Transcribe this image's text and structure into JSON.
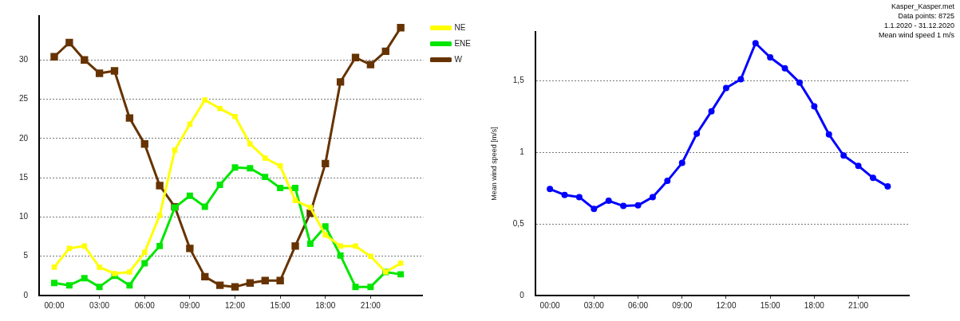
{
  "chart_data": [
    {
      "type": "line",
      "x": [
        0,
        1,
        2,
        3,
        4,
        5,
        6,
        7,
        8,
        9,
        10,
        11,
        12,
        13,
        14,
        15,
        16,
        17,
        18,
        19,
        20,
        21,
        22,
        23
      ],
      "series": [
        {
          "name": "NE",
          "color": "#ffff00",
          "values": [
            3.6,
            6.0,
            6.3,
            3.6,
            2.8,
            3.0,
            5.5,
            10.2,
            18.5,
            21.8,
            24.9,
            23.8,
            22.8,
            19.3,
            17.5,
            16.5,
            12.1,
            11.2,
            7.7,
            6.3,
            6.3,
            5.0,
            3.0,
            4.1
          ]
        },
        {
          "name": "ENE",
          "color": "#00e600",
          "values": [
            1.6,
            1.3,
            2.2,
            1.1,
            2.5,
            1.3,
            4.1,
            6.3,
            11.2,
            12.7,
            11.3,
            14.1,
            16.3,
            16.2,
            15.1,
            13.7,
            13.7,
            6.6,
            8.8,
            5.1,
            1.1,
            1.1,
            3.0,
            2.7
          ]
        },
        {
          "name": "W",
          "color": "#663300",
          "values": [
            30.4,
            32.2,
            30.0,
            28.3,
            28.6,
            22.6,
            19.3,
            14.0,
            11.3,
            6.0,
            2.4,
            1.3,
            1.1,
            1.6,
            1.9,
            1.9,
            6.3,
            10.5,
            16.8,
            27.2,
            30.3,
            29.4,
            31.1,
            34.1
          ]
        }
      ],
      "xlim": [
        -1,
        24.5
      ],
      "xticks": [
        {
          "value": 0,
          "label": "00:00"
        },
        {
          "value": 3,
          "label": "03:00"
        },
        {
          "value": 6,
          "label": "06:00"
        },
        {
          "value": 9,
          "label": "09:00"
        },
        {
          "value": 12,
          "label": "12:00"
        },
        {
          "value": 15,
          "label": "15:00"
        },
        {
          "value": 18,
          "label": "18:00"
        },
        {
          "value": 21,
          "label": "21:00"
        }
      ],
      "ylim": [
        0,
        35.6
      ],
      "yticks": [
        0,
        5,
        10,
        15,
        20,
        25,
        30
      ],
      "grid": "y",
      "legend": "top right",
      "marker": "square",
      "line_style": "solid"
    },
    {
      "type": "line",
      "x": [
        0,
        1,
        2,
        3,
        4,
        5,
        6,
        7,
        8,
        9,
        10,
        11,
        12,
        13,
        14,
        15,
        16,
        17,
        18,
        19,
        20,
        21,
        22,
        23
      ],
      "series": [
        {
          "color": "#0000ff",
          "values": [
            0.743,
            0.702,
            0.687,
            0.605,
            0.661,
            0.625,
            0.629,
            0.687,
            0.8,
            0.925,
            1.13,
            1.286,
            1.448,
            1.509,
            1.761,
            1.662,
            1.586,
            1.486,
            1.32,
            1.124,
            0.977,
            0.905,
            0.821,
            0.761
          ]
        }
      ],
      "ylabel": "Mean wind speed [m/s]",
      "annotations": [
        "Kasper_Kasper.met",
        "Data points: 8725",
        "1.1.2020 - 31.12.2020",
        "Mean wind speed 1 m/s"
      ],
      "xlim": [
        -1,
        24.5
      ],
      "xticks": [
        {
          "value": 0,
          "label": "00:00"
        },
        {
          "value": 3,
          "label": "03:00"
        },
        {
          "value": 6,
          "label": "06:00"
        },
        {
          "value": 9,
          "label": "09:00"
        },
        {
          "value": 12,
          "label": "12:00"
        },
        {
          "value": 15,
          "label": "15:00"
        },
        {
          "value": 18,
          "label": "18:00"
        },
        {
          "value": 21,
          "label": "21:00"
        }
      ],
      "ylim": [
        0,
        1.84
      ],
      "yticks": [
        0,
        {
          "value": 0.5,
          "label": "0,5"
        },
        1,
        {
          "value": 1.5,
          "label": "1,5"
        }
      ],
      "grid": "y",
      "legend": false,
      "marker": "circle",
      "line_style": "solid"
    }
  ]
}
